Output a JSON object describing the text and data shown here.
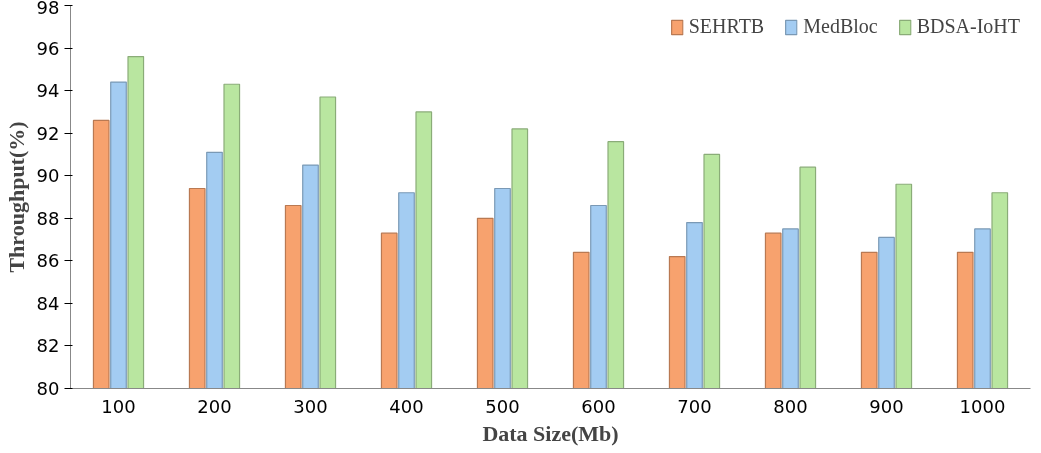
{
  "chart_data": {
    "type": "bar",
    "xlabel": "Data Size(Mb)",
    "ylabel": "Throughput(%)",
    "categories": [
      "100",
      "200",
      "300",
      "400",
      "500",
      "600",
      "700",
      "800",
      "900",
      "1000"
    ],
    "series": [
      {
        "name": "SEHRTB",
        "color": "#f7a26e",
        "values": [
          92.6,
          89.4,
          88.6,
          87.3,
          88.0,
          86.4,
          86.2,
          87.3,
          86.4,
          86.4
        ]
      },
      {
        "name": "MedBloc",
        "color": "#a3ccf2",
        "values": [
          94.4,
          91.1,
          90.5,
          89.2,
          89.4,
          88.6,
          87.8,
          87.5,
          87.1,
          87.5
        ]
      },
      {
        "name": "BDSA-IoHT",
        "color": "#b9e6a0",
        "values": [
          95.6,
          94.3,
          93.7,
          93.0,
          92.2,
          91.6,
          91.0,
          90.4,
          89.6,
          89.2
        ]
      }
    ],
    "ylim": [
      80,
      98
    ],
    "yticks": [
      80,
      82,
      84,
      86,
      88,
      90,
      92,
      94,
      96,
      98
    ],
    "grid": false,
    "legend": "top right"
  }
}
